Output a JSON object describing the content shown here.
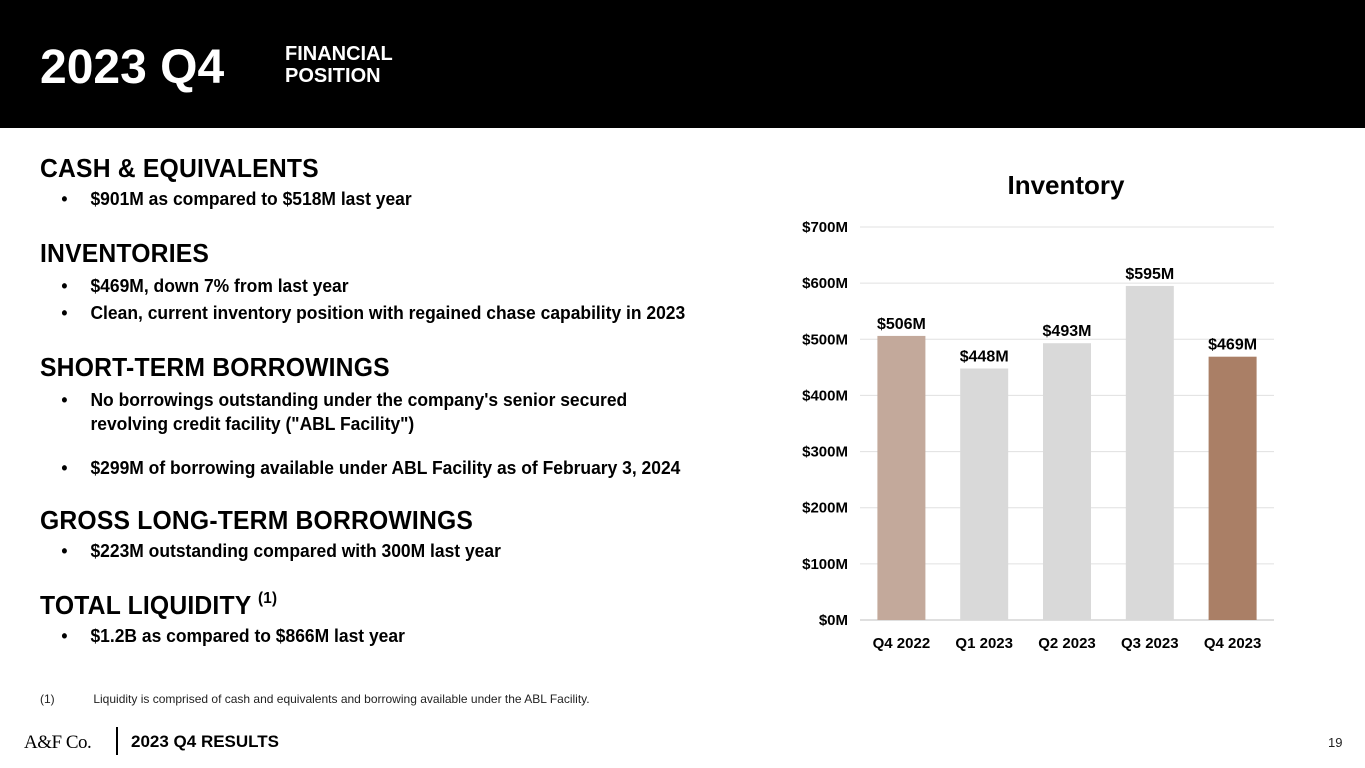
{
  "header": {
    "year_quarter": "2023 Q4",
    "subtitle_line1": "FINANCIAL",
    "subtitle_line2": "POSITION"
  },
  "sections": {
    "cash": {
      "title": "CASH & EQUIVALENTS",
      "bullets": [
        "$901M as compared to $518M last year"
      ]
    },
    "inventories": {
      "title": "INVENTORIES",
      "bullets": [
        "$469M, down 7% from last year",
        "Clean, current inventory position with regained chase capability in 2023"
      ]
    },
    "short_term": {
      "title": "SHORT-TERM BORROWINGS",
      "bullets": [
        "No borrowings outstanding under the company's senior secured",
        "revolving credit facility (\"ABL Facility\")",
        "$299M of borrowing available under ABL Facility as of February 3, 2024"
      ]
    },
    "long_term": {
      "title": "GROSS LONG-TERM BORROWINGS",
      "bullets": [
        "$223M outstanding compared with 300M last year"
      ]
    },
    "liquidity": {
      "title": "TOTAL LIQUIDITY",
      "superscript": "(1)",
      "bullets": [
        "$1.2B as compared to $866M last year"
      ]
    }
  },
  "footnote": {
    "number": "(1)",
    "text": "Liquidity is comprised of cash and equivalents and borrowing available under the ABL Facility."
  },
  "footer": {
    "logo": "A&F Co.",
    "label": "2023 Q4 RESULTS",
    "page_number": "19"
  },
  "colors": {
    "header_bg": "#000000",
    "bar_highlight_start": "#c3a99b",
    "bar_neutral": "#d9d9d9",
    "bar_highlight_end": "#aa7f66",
    "gridline": "#e0e0e0"
  },
  "chart_data": {
    "type": "bar",
    "title": "Inventory",
    "categories": [
      "Q4 2022",
      "Q1 2023",
      "Q2 2023",
      "Q3 2023",
      "Q4 2023"
    ],
    "values": [
      506,
      448,
      493,
      595,
      469
    ],
    "value_labels": [
      "$506M",
      "$448M",
      "$493M",
      "$595M",
      "$469M"
    ],
    "bar_colors": [
      "#c3a99b",
      "#d9d9d9",
      "#d9d9d9",
      "#d9d9d9",
      "#aa7f66"
    ],
    "ylim": [
      0,
      700
    ],
    "yticks": [
      0,
      100,
      200,
      300,
      400,
      500,
      600,
      700
    ],
    "ytick_labels": [
      "$0M",
      "$100M",
      "$200M",
      "$300M",
      "$400M",
      "$500M",
      "$600M",
      "$700M"
    ],
    "xlabel": "",
    "ylabel": "",
    "grid": true
  }
}
